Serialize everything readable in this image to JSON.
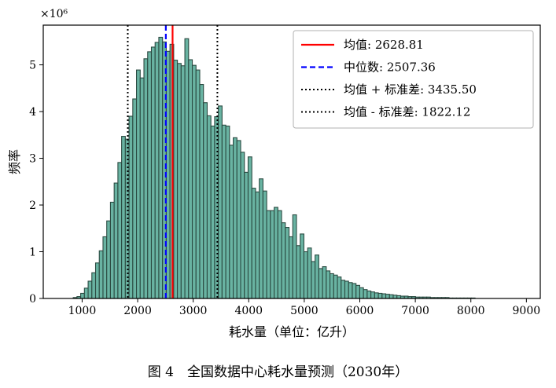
{
  "chart_data": {
    "type": "histogram",
    "title": "",
    "xlabel": "耗水量（单位：亿升）",
    "ylabel": "频率",
    "y_multiplier": "×10⁶",
    "xlim": [
      300,
      9250
    ],
    "ylim": [
      0,
      5.85
    ],
    "xticks": [
      1000,
      2000,
      3000,
      4000,
      5000,
      6000,
      7000,
      8000,
      9000
    ],
    "yticks": [
      0,
      1,
      2,
      3,
      4,
      5
    ],
    "bin_start": 840,
    "bin_width": 67,
    "bar_color": "#69b3a2",
    "bar_edge": "#2b4b42",
    "values": [
      0.02,
      0.04,
      0.11,
      0.22,
      0.37,
      0.55,
      0.76,
      1.02,
      1.32,
      1.66,
      2.06,
      2.47,
      2.91,
      3.47,
      3.41,
      3.9,
      4.27,
      4.89,
      4.72,
      5.13,
      5.28,
      5.38,
      5.48,
      5.59,
      5.49,
      5.29,
      5.44,
      5.1,
      5.03,
      4.98,
      5.56,
      5.11,
      4.99,
      4.89,
      4.58,
      4.19,
      3.91,
      3.69,
      3.89,
      4.12,
      3.71,
      3.69,
      3.28,
      3.44,
      3.38,
      3.13,
      2.7,
      3.03,
      2.36,
      2.28,
      2.56,
      2.3,
      1.88,
      1.88,
      1.95,
      1.88,
      1.62,
      1.52,
      1.32,
      1.79,
      1.13,
      1.38,
      1.0,
      1.08,
      0.79,
      0.93,
      0.64,
      0.68,
      0.59,
      0.53,
      0.5,
      0.46,
      0.39,
      0.37,
      0.34,
      0.32,
      0.28,
      0.23,
      0.19,
      0.16,
      0.14,
      0.12,
      0.11,
      0.1,
      0.09,
      0.08,
      0.07,
      0.06,
      0.05,
      0.05,
      0.04,
      0.04,
      0.03,
      0.03,
      0.03,
      0.03,
      0.02,
      0.02,
      0.02,
      0.02,
      0.02,
      0.01,
      0.01,
      0.01,
      0.01,
      0.01,
      0.01,
      0.01
    ],
    "lines": [
      {
        "label": "均值: 2628.81",
        "value": 2628.81,
        "color": "#ff0000",
        "style": "solid"
      },
      {
        "label": "中位数: 2507.36",
        "value": 2507.36,
        "color": "#0000ff",
        "style": "dashed"
      },
      {
        "label": "均值 + 标准差: 3435.50",
        "value": 3435.5,
        "color": "#000000",
        "style": "dotted"
      },
      {
        "label": "均值 - 标准差: 1822.12",
        "value": 1822.12,
        "color": "#000000",
        "style": "dotted"
      }
    ],
    "legend_position": "top-right",
    "grid": false
  },
  "caption": "图 4　全国数据中心耗水量预测（2030年）"
}
